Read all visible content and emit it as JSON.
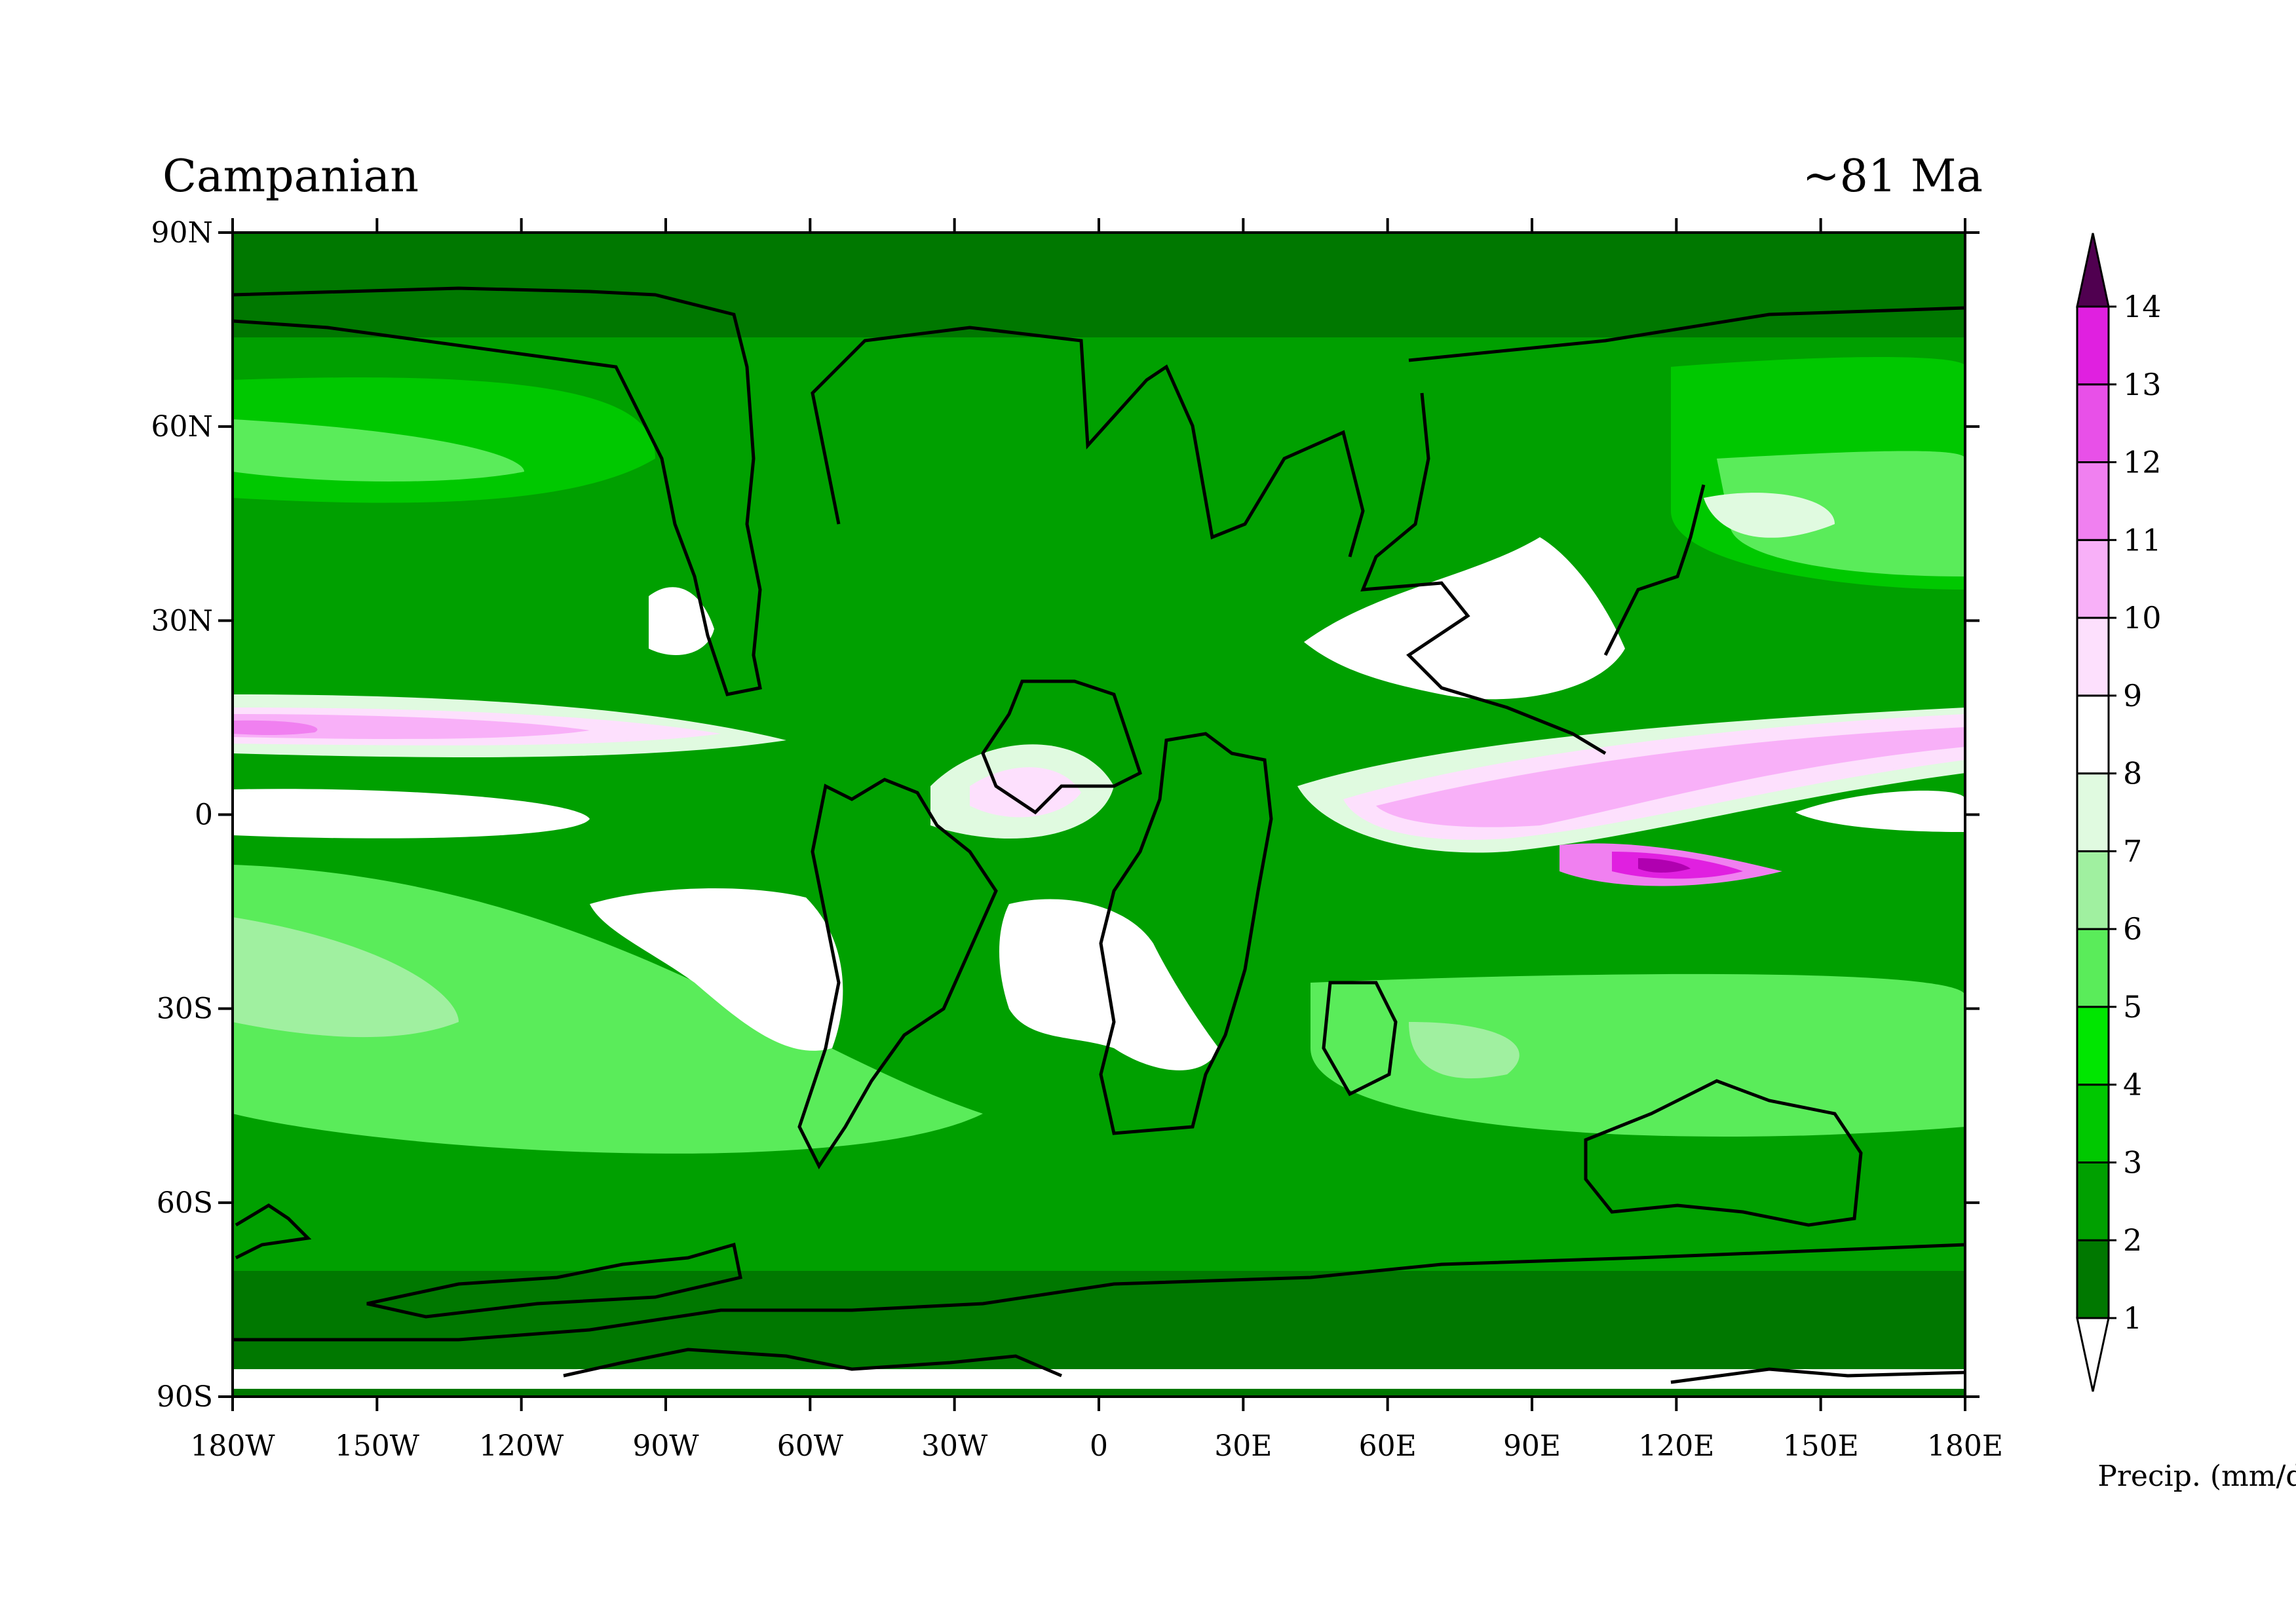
{
  "title_left": "Campanian",
  "title_right": "~81 Ma",
  "x_ticks": [
    "180W",
    "150W",
    "120W",
    "90W",
    "60W",
    "30W",
    "0",
    "30E",
    "60E",
    "90E",
    "120E",
    "150E",
    "180E"
  ],
  "y_ticks": [
    "90N",
    "60N",
    "30N",
    "0",
    "30S",
    "60S",
    "90S"
  ],
  "colorbar": {
    "unit_label": "Precip. (mm/day)",
    "levels": [
      "1",
      "2",
      "3",
      "4",
      "5",
      "6",
      "7",
      "8",
      "9",
      "10",
      "11",
      "12",
      "13",
      "14"
    ],
    "colors": [
      "#ffffff",
      "#007800",
      "#00a000",
      "#00c800",
      "#00e600",
      "#5aec5a",
      "#a0f0a0",
      "#e0fae0",
      "#ffffff",
      "#fde0fd",
      "#f8b0f8",
      "#f080f0",
      "#e850e8",
      "#e020e0",
      "#b000b0",
      "#780078",
      "#500050"
    ]
  },
  "chart_data": {
    "type": "heatmap",
    "title": "Campanian",
    "subtitle": "~81 Ma",
    "xlabel": "",
    "ylabel": "",
    "xlim": [
      -180,
      180
    ],
    "ylim": [
      -90,
      90
    ],
    "colorbar_label": "Precip. (mm/day)",
    "contour_levels": [
      1,
      2,
      3,
      4,
      5,
      6,
      7,
      8,
      9,
      10,
      11,
      12,
      13,
      14
    ],
    "colorbar_extend": "both"
  }
}
